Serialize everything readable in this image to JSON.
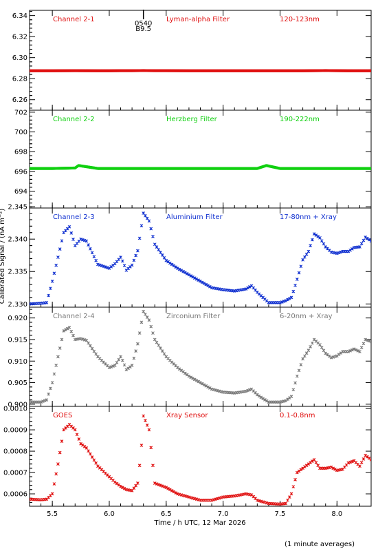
{
  "figure": {
    "xlabel": "Time / h UTC, 12 Mar 2026",
    "ylabel": "Calibrated Signal / (nA m⁻²)",
    "footnote": "(1 minute averages)",
    "marker": {
      "label_top": "0540",
      "label_bottom": "B9.5",
      "x": 6.3
    }
  },
  "chart_data": [
    {
      "type": "scatter",
      "channel": "Channel 2-1",
      "filter": "Lyman-alpha Filter",
      "band": "120-123nm",
      "color": "#e01010",
      "xlim": [
        5.3,
        8.3
      ],
      "ylim": [
        6.25,
        6.345
      ],
      "yticks": [
        6.26,
        6.28,
        6.3,
        6.32,
        6.34
      ],
      "ytick_labels": [
        "6.26",
        "6.28",
        "6.30",
        "6.32",
        "6.34"
      ],
      "ydecimals": 2,
      "x": [
        5.3,
        5.5,
        5.7,
        5.9,
        6.0,
        6.1,
        6.2,
        6.3,
        6.4,
        6.5,
        6.7,
        6.9,
        7.1,
        7.3,
        7.5,
        7.7,
        7.9,
        8.0,
        8.1,
        8.3
      ],
      "values": [
        6.2875,
        6.2875,
        6.2876,
        6.2875,
        6.2875,
        6.2876,
        6.2876,
        6.2877,
        6.2876,
        6.2876,
        6.2875,
        6.2875,
        6.2875,
        6.2875,
        6.2875,
        6.2875,
        6.2877,
        6.2876,
        6.2875,
        6.2875
      ]
    },
    {
      "type": "scatter",
      "channel": "Channel 2-2",
      "filter": "Herzberg Filter",
      "band": "190-222nm",
      "color": "#10d010",
      "xlim": [
        5.3,
        8.3
      ],
      "ylim": [
        692.3,
        702.2
      ],
      "yticks": [
        694,
        696,
        698,
        700,
        702
      ],
      "ytick_labels": [
        "694",
        "696",
        "698",
        "700",
        "702"
      ],
      "ydecimals": 0,
      "x": [
        5.3,
        5.5,
        5.7,
        5.73,
        5.9,
        6.1,
        6.3,
        6.5,
        6.7,
        6.9,
        7.1,
        7.3,
        7.38,
        7.5,
        7.7,
        7.9,
        8.1,
        8.3
      ],
      "values": [
        696.3,
        696.3,
        696.35,
        696.6,
        696.3,
        696.3,
        696.3,
        696.3,
        696.3,
        696.3,
        696.3,
        696.3,
        696.6,
        696.3,
        696.3,
        696.3,
        696.3,
        696.3
      ]
    },
    {
      "type": "scatter",
      "channel": "Channel 2-3",
      "filter": "Aluminium Filter",
      "band": "17-80nm + Xray",
      "color": "#1030d0",
      "xlim": [
        5.3,
        8.3
      ],
      "ylim": [
        2.3295,
        2.3448
      ],
      "yticks": [
        2.33,
        2.335,
        2.34,
        2.345
      ],
      "ytick_labels": [
        "2.330",
        "2.335",
        "2.340",
        "2.345"
      ],
      "ydecimals": 3,
      "x": [
        5.3,
        5.4,
        5.45,
        5.5,
        5.55,
        5.6,
        5.65,
        5.7,
        5.75,
        5.8,
        5.9,
        6.0,
        6.05,
        6.1,
        6.12,
        6.15,
        6.2,
        6.25,
        6.3,
        6.35,
        6.4,
        6.5,
        6.6,
        6.7,
        6.8,
        6.9,
        7.0,
        7.1,
        7.2,
        7.25,
        7.3,
        7.35,
        7.4,
        7.5,
        7.55,
        7.6,
        7.65,
        7.7,
        7.75,
        7.8,
        7.85,
        7.9,
        7.95,
        8.0,
        8.05,
        8.1,
        8.15,
        8.2,
        8.25,
        8.3
      ],
      "values": [
        2.33,
        2.3301,
        2.3302,
        2.3335,
        2.3372,
        2.341,
        2.3419,
        2.339,
        2.34,
        2.3397,
        2.3361,
        2.3355,
        2.3362,
        2.3372,
        2.3365,
        2.3352,
        2.336,
        2.3382,
        2.344,
        2.3428,
        2.3392,
        2.3367,
        2.3355,
        2.3345,
        2.3335,
        2.3325,
        2.3322,
        2.332,
        2.3323,
        2.3328,
        2.3318,
        2.331,
        2.3302,
        2.3302,
        2.3305,
        2.331,
        2.3338,
        2.3368,
        2.3381,
        2.3408,
        2.3402,
        2.3388,
        2.338,
        2.3378,
        2.3381,
        2.3381,
        2.3387,
        2.3388,
        2.3403,
        2.3397
      ]
    },
    {
      "type": "scatter",
      "channel": "Channel 2-4",
      "filter": "Zirconium Filter",
      "band": "6-20nm + Xray",
      "color": "#7a7a7a",
      "xlim": [
        5.3,
        8.3
      ],
      "ylim": [
        0.8995,
        0.9225
      ],
      "yticks": [
        0.9,
        0.905,
        0.91,
        0.915,
        0.92
      ],
      "ytick_labels": [
        "0.900",
        "0.905",
        "0.910",
        "0.915",
        "0.920"
      ],
      "ydecimals": 3,
      "x": [
        5.3,
        5.4,
        5.45,
        5.5,
        5.55,
        5.6,
        5.65,
        5.7,
        5.75,
        5.8,
        5.9,
        6.0,
        6.05,
        6.1,
        6.12,
        6.15,
        6.2,
        6.25,
        6.3,
        6.35,
        6.4,
        6.5,
        6.6,
        6.7,
        6.8,
        6.9,
        7.0,
        7.1,
        7.2,
        7.25,
        7.3,
        7.35,
        7.4,
        7.5,
        7.55,
        7.6,
        7.65,
        7.7,
        7.75,
        7.8,
        7.85,
        7.9,
        7.95,
        8.0,
        8.05,
        8.1,
        8.15,
        8.2,
        8.25,
        8.3
      ],
      "values": [
        0.9005,
        0.9005,
        0.901,
        0.905,
        0.911,
        0.917,
        0.9178,
        0.915,
        0.9152,
        0.9148,
        0.911,
        0.9085,
        0.909,
        0.911,
        0.91,
        0.908,
        0.909,
        0.914,
        0.9215,
        0.9195,
        0.915,
        0.911,
        0.9085,
        0.9065,
        0.905,
        0.9035,
        0.9028,
        0.9026,
        0.903,
        0.9035,
        0.9022,
        0.9013,
        0.9005,
        0.9005,
        0.9008,
        0.9018,
        0.9065,
        0.9105,
        0.9125,
        0.915,
        0.9138,
        0.9118,
        0.9108,
        0.9112,
        0.9122,
        0.9122,
        0.9128,
        0.9122,
        0.915,
        0.9145
      ]
    },
    {
      "type": "scatter",
      "channel": "GOES",
      "filter": "Xray Sensor",
      "band": "0.1-0.8nm",
      "color": "#e01010",
      "xlim": [
        5.3,
        8.3
      ],
      "ylim": [
        0.000542,
        0.00101
      ],
      "yticks": [
        0.0006,
        0.0007,
        0.0008,
        0.0009,
        0.001
      ],
      "ytick_labels": [
        "0.0006",
        "0.0007",
        "0.0008",
        "0.0009",
        "0.0010"
      ],
      "ydecimals": 4,
      "x": [
        5.3,
        5.4,
        5.45,
        5.5,
        5.55,
        5.6,
        5.65,
        5.7,
        5.75,
        5.8,
        5.9,
        6.0,
        6.05,
        6.1,
        6.15,
        6.2,
        6.25,
        6.28,
        6.3,
        6.35,
        6.4,
        6.5,
        6.6,
        6.7,
        6.8,
        6.9,
        7.0,
        7.1,
        7.2,
        7.25,
        7.3,
        7.4,
        7.5,
        7.55,
        7.6,
        7.65,
        7.7,
        7.75,
        7.8,
        7.85,
        7.9,
        7.95,
        8.0,
        8.05,
        8.1,
        8.15,
        8.2,
        8.25,
        8.3
      ],
      "values": [
        0.000575,
        0.000572,
        0.000575,
        0.0006,
        0.00074,
        0.0009,
        0.000925,
        0.0009,
        0.000835,
        0.000815,
        0.00073,
        0.00068,
        0.000655,
        0.000635,
        0.00062,
        0.000615,
        0.00065,
        0.0008,
        0.000965,
        0.0009,
        0.00065,
        0.00063,
        0.0006,
        0.000585,
        0.00057,
        0.00057,
        0.000585,
        0.00059,
        0.0006,
        0.000595,
        0.00057,
        0.000555,
        0.000552,
        0.000555,
        0.0006,
        0.0007,
        0.00072,
        0.00074,
        0.00076,
        0.00072,
        0.00072,
        0.000725,
        0.00071,
        0.000715,
        0.000745,
        0.000755,
        0.00073,
        0.00078,
        0.00076
      ]
    }
  ],
  "xaxis": {
    "xlim": [
      5.3,
      8.3
    ],
    "ticks": [
      5.5,
      6.0,
      6.5,
      7.0,
      7.5,
      8.0
    ],
    "tick_labels": [
      "5.5",
      "6.0",
      "6.5",
      "7.0",
      "7.5",
      "8.0"
    ]
  }
}
